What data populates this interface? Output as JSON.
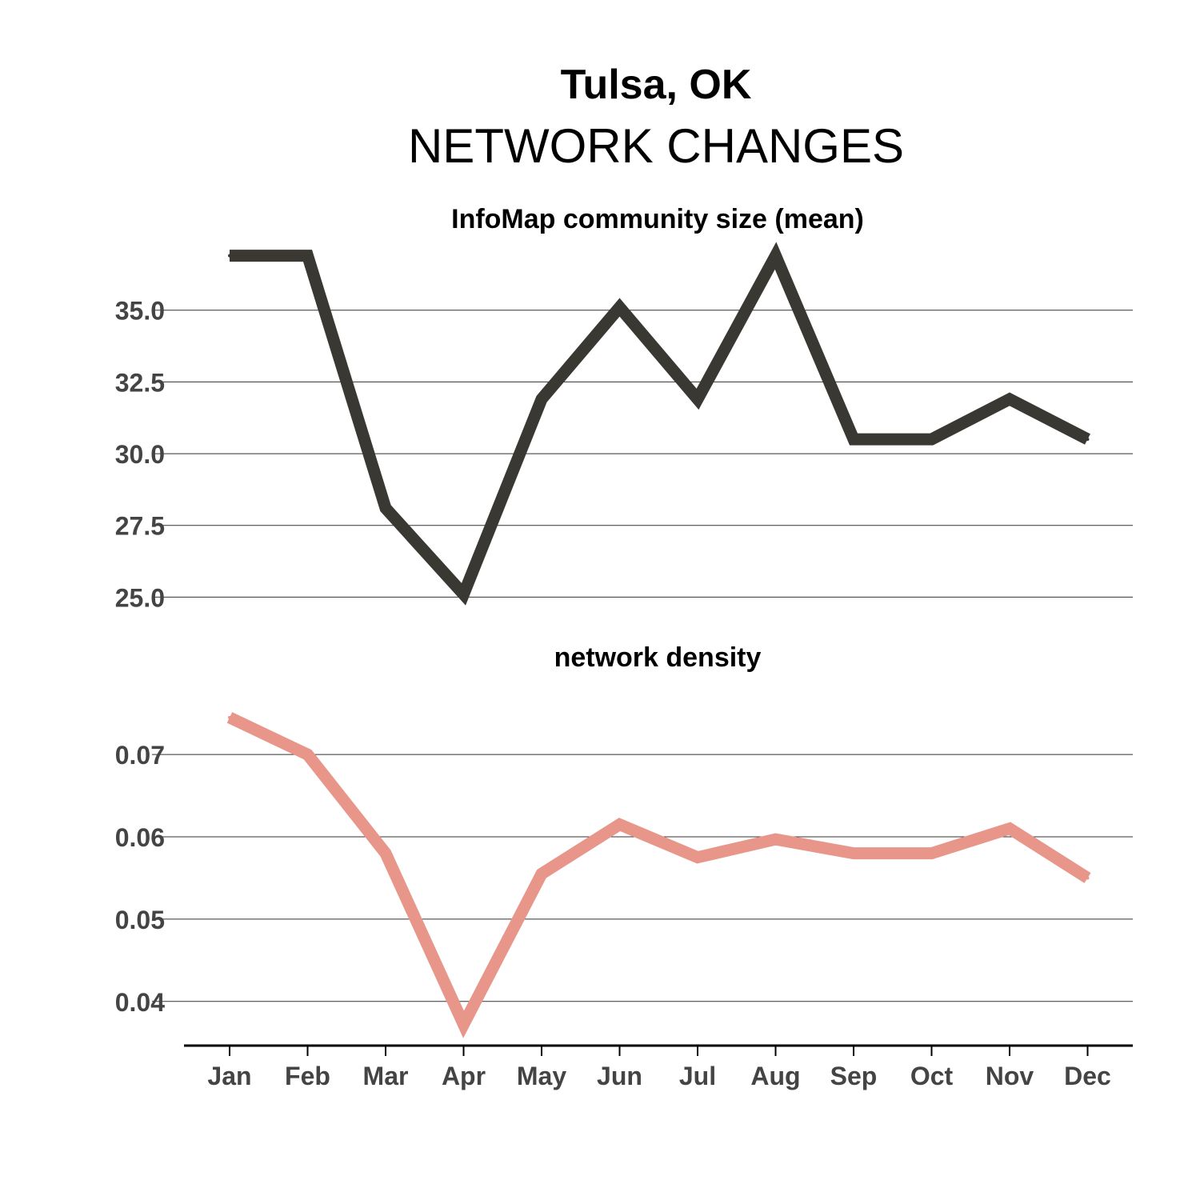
{
  "header": {
    "title": "Tulsa, OK",
    "subtitle": "NETWORK CHANGES"
  },
  "chart_data": [
    {
      "type": "line",
      "title": "InfoMap community size (mean)",
      "categories": [
        "Jan",
        "Feb",
        "Mar",
        "Apr",
        "May",
        "Jun",
        "Jul",
        "Aug",
        "Sep",
        "Oct",
        "Nov",
        "Dec"
      ],
      "series": [
        {
          "values": [
            36.9,
            36.9,
            28.1,
            25.1,
            31.9,
            35.1,
            31.9,
            36.9,
            30.5,
            30.5,
            31.9,
            30.5
          ],
          "color": "#3a3832"
        }
      ],
      "yticks": [
        "25.0",
        "27.5",
        "30.0",
        "32.5",
        "35.0"
      ],
      "ylim": [
        24.9,
        37.0
      ],
      "grid": true
    },
    {
      "type": "line",
      "title": "network density",
      "categories": [
        "Jan",
        "Feb",
        "Mar",
        "Apr",
        "May",
        "Jun",
        "Jul",
        "Aug",
        "Sep",
        "Oct",
        "Nov",
        "Dec"
      ],
      "series": [
        {
          "values": [
            0.0745,
            0.07,
            0.058,
            0.0372,
            0.0555,
            0.0615,
            0.0575,
            0.0597,
            0.058,
            0.058,
            0.061,
            0.055
          ],
          "color": "#e8968a"
        }
      ],
      "yticks": [
        "0.04",
        "0.05",
        "0.06",
        "0.07"
      ],
      "ylim": [
        0.0357,
        0.0775
      ],
      "grid": true
    }
  ]
}
